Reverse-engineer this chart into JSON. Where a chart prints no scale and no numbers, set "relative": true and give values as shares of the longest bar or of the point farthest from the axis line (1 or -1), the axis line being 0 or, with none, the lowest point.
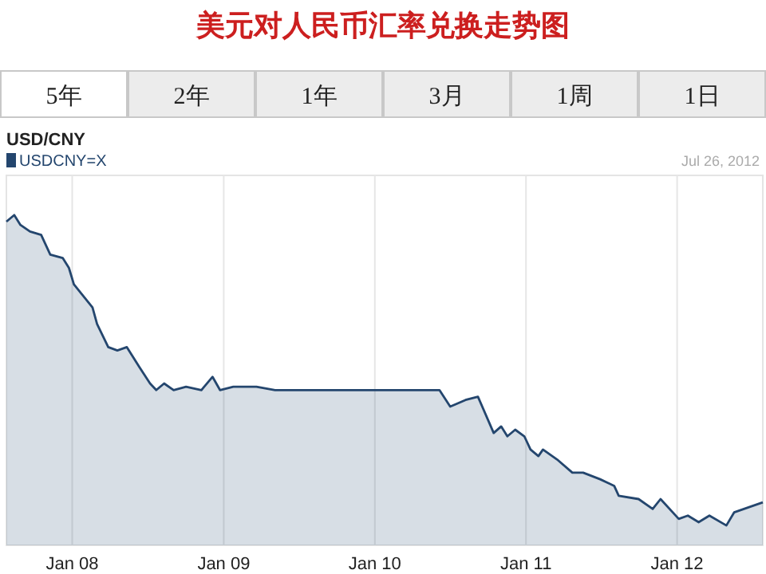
{
  "chart_data": {
    "type": "area",
    "title": "美元对人民币汇率兑换走势图",
    "subtitle": "USD/CNY",
    "annotations": [
      "Jul 26, 2012",
      "5年",
      "2年",
      "1年",
      "3月",
      "1周",
      "1日"
    ],
    "relative": true,
    "legend": "top left",
    "grid": "x",
    "xlim": [
      "2007-07-26",
      "2012-07-26"
    ],
    "xticks": [
      {
        "value": "2008-01-01",
        "label": "Jan 08"
      },
      {
        "value": "2009-01-01",
        "label": "Jan 09"
      },
      {
        "value": "2010-01-01",
        "label": "Jan 10"
      },
      {
        "value": "2011-01-01",
        "label": "Jan 11"
      },
      {
        "value": "2012-01-01",
        "label": "Jan 12"
      }
    ],
    "series": [
      {
        "name": "USDCNY=X",
        "color": "#24466e",
        "x": [
          "2007-07-26",
          "2007-08-14",
          "2007-08-29",
          "2007-09-21",
          "2007-10-18",
          "2007-11-09",
          "2007-12-09",
          "2007-12-24",
          "2008-01-05",
          "2008-01-31",
          "2008-02-19",
          "2008-03-01",
          "2008-03-28",
          "2008-04-19",
          "2008-05-12",
          "2008-06-11",
          "2008-07-07",
          "2008-07-22",
          "2008-08-10",
          "2008-09-02",
          "2008-10-02",
          "2008-11-08",
          "2008-12-05",
          "2008-12-23",
          "2009-01-24",
          "2009-03-21",
          "2009-05-05",
          "2009-06-23",
          "2009-09-06",
          "2009-12-28",
          "2010-06-06",
          "2010-07-02",
          "2010-08-08",
          "2010-09-07",
          "2010-10-15",
          "2010-11-02",
          "2010-11-17",
          "2010-12-06",
          "2010-12-28",
          "2011-01-12",
          "2011-01-31",
          "2011-02-11",
          "2011-03-17",
          "2011-04-23",
          "2011-05-19",
          "2011-06-29",
          "2011-08-02",
          "2011-08-13",
          "2011-09-30",
          "2011-11-03",
          "2011-11-22",
          "2012-01-05",
          "2012-01-27",
          "2012-02-22",
          "2012-03-19",
          "2012-04-29",
          "2012-05-18",
          "2012-07-26"
        ],
        "values": [
          0.98,
          1.0,
          0.97,
          0.95,
          0.94,
          0.88,
          0.87,
          0.84,
          0.79,
          0.75,
          0.72,
          0.67,
          0.6,
          0.59,
          0.6,
          0.54,
          0.49,
          0.47,
          0.49,
          0.47,
          0.48,
          0.47,
          0.51,
          0.47,
          0.48,
          0.48,
          0.47,
          0.47,
          0.47,
          0.47,
          0.47,
          0.42,
          0.44,
          0.45,
          0.34,
          0.36,
          0.33,
          0.35,
          0.33,
          0.29,
          0.27,
          0.29,
          0.26,
          0.22,
          0.22,
          0.2,
          0.18,
          0.15,
          0.14,
          0.11,
          0.14,
          0.08,
          0.09,
          0.07,
          0.09,
          0.06,
          0.1,
          0.13
        ]
      }
    ]
  }
}
